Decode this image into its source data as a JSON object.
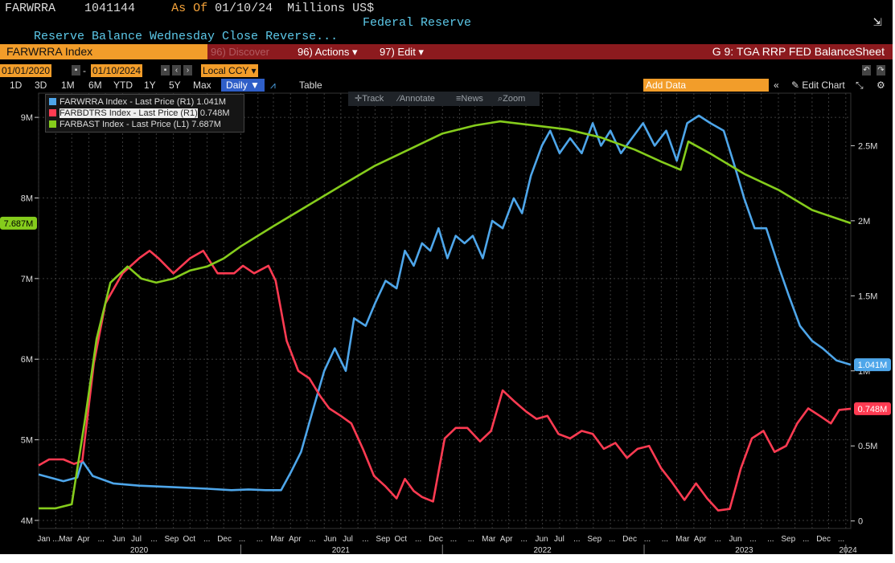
{
  "header": {
    "ticker": "FARWRRA",
    "value": "1041144",
    "as_of_label": "As Of",
    "as_of_date": "01/10/24",
    "units": "Millions US$",
    "description": "Reserve Balance Wednesday Close Reverse...",
    "source": "Federal Reserve"
  },
  "toolbar": {
    "index_name": "FARWRRA Index",
    "discover_label": "96) Discover",
    "actions_label": "96) Actions",
    "edit_label": "97) Edit",
    "chart_title": "G 9: TGA RRP FED BalanceSheet"
  },
  "range": {
    "start_date": "01/01/2020",
    "end_date": "01/10/2024",
    "currency": "Local CCY"
  },
  "periods": [
    "1D",
    "3D",
    "1M",
    "6M",
    "YTD",
    "1Y",
    "5Y",
    "Max"
  ],
  "frequency_label": "Daily",
  "table_label": "Table",
  "add_data_placeholder": "Add Data",
  "edit_chart_label": "Edit Chart",
  "tools": [
    "Track",
    "Annotate",
    "News",
    "Zoom"
  ],
  "colors": {
    "background": "#000000",
    "accent": "#f29d2a",
    "blue": "#4ea6ea",
    "red": "#ff3b52",
    "green": "#85cc1c"
  },
  "chart_data": {
    "type": "line",
    "title": "G 9: TGA RRP FED BalanceSheet",
    "grid": true,
    "legend_position": "top-left",
    "left_axis": {
      "ticks": [
        "4M",
        "5M",
        "6M",
        "7M",
        "8M",
        "9M"
      ],
      "ylim": [
        3900000,
        9300000
      ]
    },
    "right_axis": {
      "ticks": [
        "0",
        "0.5M",
        "1M",
        "1.5M",
        "2M",
        "2.5M"
      ],
      "ylim": [
        -50000,
        2850000
      ]
    },
    "x_tick_labels": [
      "Jan ...",
      "Mar",
      "Apr",
      "...",
      "Jun",
      "Jul",
      "...",
      "Sep",
      "Oct",
      "...",
      "Dec",
      "...",
      "...",
      "Mar",
      "Apr",
      "...",
      "Jun",
      "Jul",
      "...",
      "Sep",
      "Oct",
      "...",
      "Dec",
      "...",
      "...",
      "Mar",
      "Apr",
      "...",
      "Jun",
      "Jul",
      "...",
      "Sep",
      "...",
      "Dec",
      "...",
      "...",
      "Mar",
      "Apr",
      "...",
      "Jun",
      "...",
      "...",
      "Sep",
      "...",
      "Dec",
      "..."
    ],
    "years": [
      "2020",
      "2021",
      "2022",
      "2023",
      "2024"
    ],
    "x_range": [
      "2020-01-01",
      "2024-01-10"
    ],
    "series": [
      {
        "name": "FARWRRA Index - Last Price (R1)",
        "last": "1.041M",
        "axis": "right",
        "color": "#4ea6ea",
        "points": [
          [
            "2020-01-01",
            310000
          ],
          [
            "2020-02-15",
            265000
          ],
          [
            "2020-03-11",
            290000
          ],
          [
            "2020-03-20",
            400000
          ],
          [
            "2020-04-08",
            300000
          ],
          [
            "2020-05-15",
            250000
          ],
          [
            "2020-07-01",
            235000
          ],
          [
            "2020-09-01",
            225000
          ],
          [
            "2020-11-01",
            215000
          ],
          [
            "2020-12-15",
            205000
          ],
          [
            "2021-01-15",
            210000
          ],
          [
            "2021-02-15",
            205000
          ],
          [
            "2021-03-15",
            205000
          ],
          [
            "2021-04-01",
            320000
          ],
          [
            "2021-04-20",
            460000
          ],
          [
            "2021-05-10",
            720000
          ],
          [
            "2021-06-01",
            1000000
          ],
          [
            "2021-06-20",
            1150000
          ],
          [
            "2021-07-10",
            1000000
          ],
          [
            "2021-07-25",
            1350000
          ],
          [
            "2021-08-15",
            1300000
          ],
          [
            "2021-09-01",
            1450000
          ],
          [
            "2021-09-20",
            1600000
          ],
          [
            "2021-10-10",
            1550000
          ],
          [
            "2021-10-25",
            1800000
          ],
          [
            "2021-11-10",
            1700000
          ],
          [
            "2021-11-25",
            1850000
          ],
          [
            "2021-12-10",
            1800000
          ],
          [
            "2021-12-25",
            1950000
          ],
          [
            "2022-01-10",
            1750000
          ],
          [
            "2022-01-25",
            1900000
          ],
          [
            "2022-02-10",
            1850000
          ],
          [
            "2022-02-25",
            1900000
          ],
          [
            "2022-03-15",
            1750000
          ],
          [
            "2022-04-01",
            2000000
          ],
          [
            "2022-04-20",
            1950000
          ],
          [
            "2022-05-10",
            2150000
          ],
          [
            "2022-05-25",
            2050000
          ],
          [
            "2022-06-10",
            2300000
          ],
          [
            "2022-06-30",
            2500000
          ],
          [
            "2022-07-15",
            2600000
          ],
          [
            "2022-08-01",
            2450000
          ],
          [
            "2022-08-20",
            2550000
          ],
          [
            "2022-09-10",
            2450000
          ],
          [
            "2022-09-30",
            2650000
          ],
          [
            "2022-10-15",
            2500000
          ],
          [
            "2022-11-01",
            2600000
          ],
          [
            "2022-11-20",
            2450000
          ],
          [
            "2022-12-10",
            2550000
          ],
          [
            "2022-12-30",
            2650000
          ],
          [
            "2023-01-20",
            2500000
          ],
          [
            "2023-02-10",
            2600000
          ],
          [
            "2023-03-01",
            2400000
          ],
          [
            "2023-03-20",
            2650000
          ],
          [
            "2023-04-10",
            2700000
          ],
          [
            "2023-05-01",
            2650000
          ],
          [
            "2023-05-25",
            2600000
          ],
          [
            "2023-06-15",
            2350000
          ],
          [
            "2023-07-01",
            2150000
          ],
          [
            "2023-07-20",
            1950000
          ],
          [
            "2023-08-10",
            1950000
          ],
          [
            "2023-09-01",
            1700000
          ],
          [
            "2023-09-20",
            1500000
          ],
          [
            "2023-10-10",
            1300000
          ],
          [
            "2023-11-01",
            1200000
          ],
          [
            "2023-11-20",
            1150000
          ],
          [
            "2023-12-15",
            1070000
          ],
          [
            "2024-01-10",
            1041000
          ]
        ]
      },
      {
        "name": "FARBDTRS Index - Last Price (R1)",
        "last": "0.748M",
        "axis": "right",
        "color": "#ff3b52",
        "points": [
          [
            "2020-01-01",
            370000
          ],
          [
            "2020-01-20",
            410000
          ],
          [
            "2020-02-15",
            410000
          ],
          [
            "2020-03-05",
            380000
          ],
          [
            "2020-03-20",
            400000
          ],
          [
            "2020-04-10",
            1050000
          ],
          [
            "2020-05-01",
            1450000
          ],
          [
            "2020-06-01",
            1650000
          ],
          [
            "2020-07-01",
            1750000
          ],
          [
            "2020-07-20",
            1800000
          ],
          [
            "2020-08-05",
            1750000
          ],
          [
            "2020-09-01",
            1650000
          ],
          [
            "2020-10-01",
            1750000
          ],
          [
            "2020-10-25",
            1800000
          ],
          [
            "2020-11-20",
            1650000
          ],
          [
            "2020-12-20",
            1650000
          ],
          [
            "2021-01-05",
            1700000
          ],
          [
            "2021-01-25",
            1650000
          ],
          [
            "2021-02-20",
            1700000
          ],
          [
            "2021-03-05",
            1600000
          ],
          [
            "2021-03-25",
            1200000
          ],
          [
            "2021-04-15",
            1000000
          ],
          [
            "2021-05-05",
            950000
          ],
          [
            "2021-05-25",
            830000
          ],
          [
            "2021-06-10",
            750000
          ],
          [
            "2021-07-01",
            700000
          ],
          [
            "2021-07-20",
            650000
          ],
          [
            "2021-08-10",
            480000
          ],
          [
            "2021-08-30",
            300000
          ],
          [
            "2021-09-20",
            230000
          ],
          [
            "2021-10-10",
            150000
          ],
          [
            "2021-10-25",
            280000
          ],
          [
            "2021-11-10",
            200000
          ],
          [
            "2021-11-25",
            160000
          ],
          [
            "2021-12-15",
            130000
          ],
          [
            "2022-01-05",
            550000
          ],
          [
            "2022-01-25",
            620000
          ],
          [
            "2022-02-15",
            620000
          ],
          [
            "2022-03-10",
            530000
          ],
          [
            "2022-03-30",
            600000
          ],
          [
            "2022-04-20",
            870000
          ],
          [
            "2022-05-10",
            800000
          ],
          [
            "2022-06-01",
            730000
          ],
          [
            "2022-06-20",
            680000
          ],
          [
            "2022-07-10",
            700000
          ],
          [
            "2022-07-30",
            580000
          ],
          [
            "2022-08-20",
            550000
          ],
          [
            "2022-09-10",
            600000
          ],
          [
            "2022-09-30",
            580000
          ],
          [
            "2022-10-20",
            480000
          ],
          [
            "2022-11-10",
            520000
          ],
          [
            "2022-12-01",
            420000
          ],
          [
            "2022-12-20",
            480000
          ],
          [
            "2023-01-10",
            500000
          ],
          [
            "2023-02-01",
            350000
          ],
          [
            "2023-02-20",
            260000
          ],
          [
            "2023-03-15",
            140000
          ],
          [
            "2023-04-05",
            250000
          ],
          [
            "2023-04-25",
            150000
          ],
          [
            "2023-05-15",
            70000
          ],
          [
            "2023-06-05",
            80000
          ],
          [
            "2023-06-25",
            350000
          ],
          [
            "2023-07-15",
            550000
          ],
          [
            "2023-08-05",
            600000
          ],
          [
            "2023-08-25",
            460000
          ],
          [
            "2023-09-15",
            500000
          ],
          [
            "2023-10-05",
            650000
          ],
          [
            "2023-10-25",
            750000
          ],
          [
            "2023-11-15",
            700000
          ],
          [
            "2023-12-05",
            650000
          ],
          [
            "2023-12-20",
            740000
          ],
          [
            "2024-01-10",
            748000
          ]
        ]
      },
      {
        "name": "FARBAST Index - Last Price (L1)",
        "last": "7.687M",
        "axis": "left",
        "color": "#85cc1c",
        "points": [
          [
            "2020-01-01",
            4150000
          ],
          [
            "2020-02-01",
            4150000
          ],
          [
            "2020-03-01",
            4200000
          ],
          [
            "2020-03-25",
            5250000
          ],
          [
            "2020-04-15",
            6250000
          ],
          [
            "2020-05-10",
            6950000
          ],
          [
            "2020-06-10",
            7150000
          ],
          [
            "2020-07-05",
            7000000
          ],
          [
            "2020-08-01",
            6950000
          ],
          [
            "2020-09-01",
            7000000
          ],
          [
            "2020-10-01",
            7100000
          ],
          [
            "2020-11-01",
            7150000
          ],
          [
            "2020-12-01",
            7250000
          ],
          [
            "2021-01-01",
            7400000
          ],
          [
            "2021-03-01",
            7650000
          ],
          [
            "2021-05-01",
            7900000
          ],
          [
            "2021-07-01",
            8150000
          ],
          [
            "2021-09-01",
            8400000
          ],
          [
            "2021-11-01",
            8600000
          ],
          [
            "2022-01-01",
            8800000
          ],
          [
            "2022-03-01",
            8900000
          ],
          [
            "2022-04-15",
            8950000
          ],
          [
            "2022-06-15",
            8900000
          ],
          [
            "2022-08-15",
            8850000
          ],
          [
            "2022-10-15",
            8750000
          ],
          [
            "2022-12-15",
            8600000
          ],
          [
            "2023-02-01",
            8450000
          ],
          [
            "2023-03-08",
            8350000
          ],
          [
            "2023-03-22",
            8700000
          ],
          [
            "2023-05-01",
            8550000
          ],
          [
            "2023-07-01",
            8300000
          ],
          [
            "2023-09-01",
            8100000
          ],
          [
            "2023-11-01",
            7850000
          ],
          [
            "2024-01-10",
            7687000
          ]
        ]
      }
    ]
  }
}
